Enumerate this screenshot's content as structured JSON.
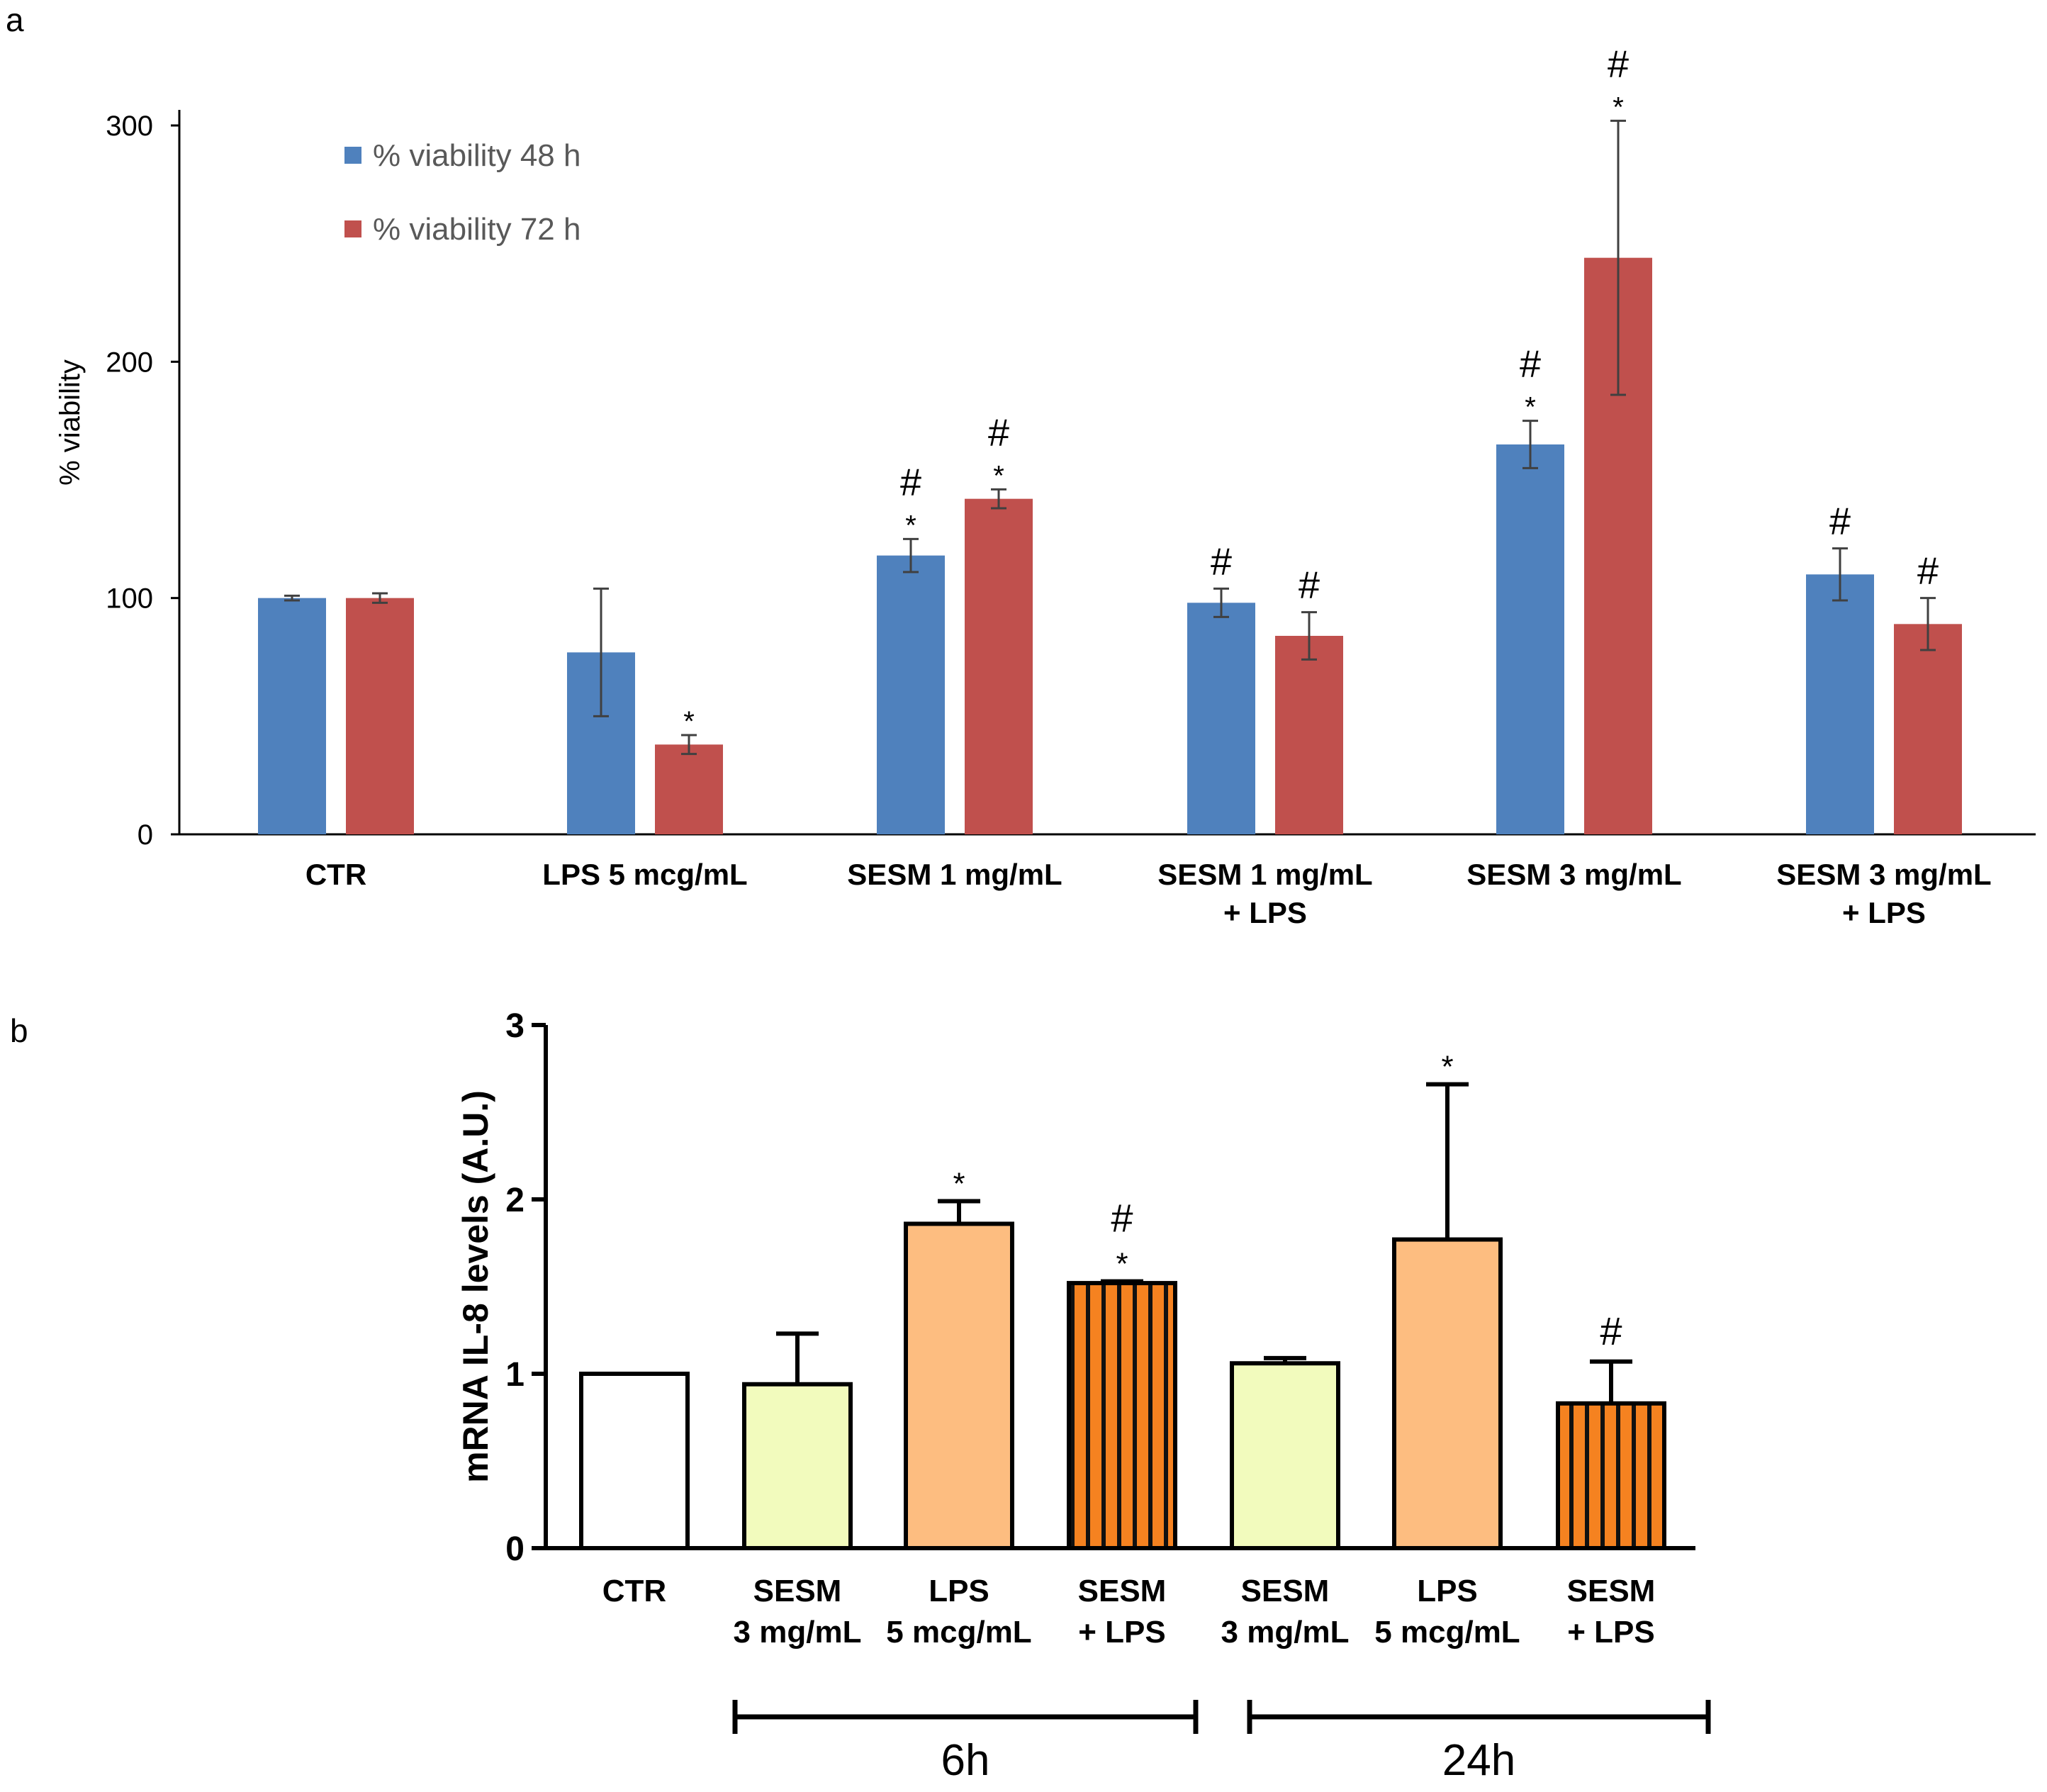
{
  "chart_data": [
    {
      "panel": "a",
      "type": "bar",
      "ylabel": "% viability",
      "ylim": [
        0,
        300
      ],
      "yticks": [
        0,
        100,
        200,
        300
      ],
      "legend_position": "top-left",
      "categories": [
        [
          "CTR"
        ],
        [
          "LPS 5 mcg/mL"
        ],
        [
          "SESM 1 mg/mL"
        ],
        [
          "SESM 1 mg/mL",
          "+ LPS"
        ],
        [
          "SESM 3 mg/mL"
        ],
        [
          "SESM 3 mg/mL",
          "+ LPS"
        ]
      ],
      "series": [
        {
          "name": "% viability 48 h",
          "color": "#4f81bd",
          "values": [
            100,
            77,
            118,
            98,
            165,
            110
          ],
          "errors": [
            1,
            27,
            7,
            6,
            10,
            11
          ],
          "annotations": [
            [],
            [],
            [
              "*",
              "#"
            ],
            [
              "#"
            ],
            [
              "*",
              "#"
            ],
            [
              "#"
            ]
          ]
        },
        {
          "name": "% viability 72 h",
          "color": "#c0504d",
          "values": [
            100,
            38,
            142,
            84,
            244,
            89
          ],
          "errors": [
            2,
            4,
            4,
            10,
            58,
            11
          ],
          "annotations": [
            [],
            [
              "*"
            ],
            [
              "*",
              "#"
            ],
            [
              "#"
            ],
            [
              "*",
              "#"
            ],
            [
              "#"
            ]
          ]
        }
      ]
    },
    {
      "panel": "b",
      "type": "bar",
      "ylabel": "mRNA IL-8 levels (A.U.)",
      "ylim": [
        0,
        3
      ],
      "yticks": [
        0,
        1,
        2,
        3
      ],
      "categories": [
        [
          "CTR"
        ],
        [
          "SESM",
          "3 mg/mL"
        ],
        [
          "LPS",
          "5 mcg/mL"
        ],
        [
          "SESM",
          "+ LPS"
        ],
        [
          "SESM",
          "3 mg/mL"
        ],
        [
          "LPS",
          "5 mcg/mL"
        ],
        [
          "SESM",
          "+ LPS"
        ]
      ],
      "values": [
        1.0,
        0.94,
        1.86,
        1.52,
        1.06,
        1.77,
        0.83
      ],
      "errors": [
        0.0,
        0.29,
        0.13,
        0.01,
        0.03,
        0.89,
        0.24
      ],
      "colors": [
        "#ffffff",
        "#f2fbbd",
        "#fdbd80",
        "#f58220",
        "#f2fbbd",
        "#fdbd80",
        "#f58220"
      ],
      "striped": [
        false,
        false,
        false,
        true,
        false,
        false,
        true
      ],
      "annotations": [
        [],
        [],
        [
          "*"
        ],
        [
          "*",
          "#"
        ],
        [],
        [
          "*"
        ],
        [
          "#"
        ]
      ],
      "groups": [
        {
          "label": "6h",
          "bars": [
            1,
            4
          ]
        },
        {
          "label": "24h",
          "bars": [
            4,
            7
          ]
        }
      ]
    }
  ],
  "panel_labels": {
    "a": "a",
    "b": "b"
  }
}
